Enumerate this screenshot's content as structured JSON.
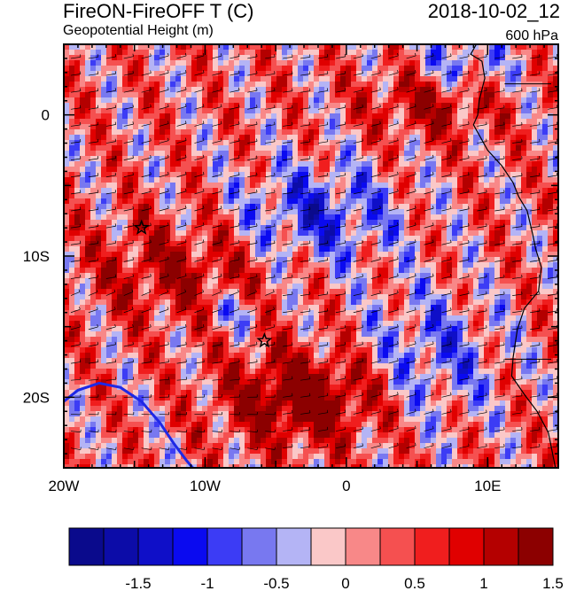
{
  "header": {
    "title_left": "FireON-FireOFF T (C)",
    "title_right": "2018-10-02_12",
    "subtitle_left": "Geopotential Height (m)",
    "subtitle_right": "600 hPa"
  },
  "chart_data": {
    "type": "heatmap",
    "title": "FireON-FireOFF T (C)",
    "subtitle": "Geopotential Height (m)",
    "level": "600 hPa",
    "datetime": "2018-10-02_12",
    "xlim": [
      -20,
      15
    ],
    "ylim": [
      -25,
      5
    ],
    "x_ticks": [
      {
        "value": -20,
        "label": "20W"
      },
      {
        "value": -10,
        "label": "10W"
      },
      {
        "value": 0,
        "label": "0"
      },
      {
        "value": 10,
        "label": "10E"
      }
    ],
    "y_ticks": [
      {
        "value": 0,
        "label": "0"
      },
      {
        "value": -10,
        "label": "10S"
      },
      {
        "value": -20,
        "label": "20S"
      }
    ],
    "colorbar": {
      "levels": [
        -1.75,
        -1.5,
        -1.25,
        -1,
        -0.75,
        -0.5,
        -0.25,
        0,
        0.25,
        0.5,
        0.75,
        1,
        1.25,
        1.5,
        1.75
      ],
      "labels": [
        {
          "value": -1.5,
          "label": "-1.5"
        },
        {
          "value": -1,
          "label": "-1"
        },
        {
          "value": -0.5,
          "label": "-0.5"
        },
        {
          "value": 0,
          "label": "0"
        },
        {
          "value": 0.5,
          "label": "0.5"
        },
        {
          "value": 1,
          "label": "1"
        },
        {
          "value": 1.5,
          "label": "1.5"
        }
      ],
      "colors": [
        "#0a0a8c",
        "#0c0ca8",
        "#0f0fc8",
        "#0a0af0",
        "#3c3cf5",
        "#7878f0",
        "#b4b4f5",
        "#fac8c8",
        "#f88888",
        "#f55050",
        "#f01e1e",
        "#e00000",
        "#b40000",
        "#8c0000"
      ]
    },
    "markers": [
      {
        "type": "star",
        "lon": -14.5,
        "lat": -8.0
      },
      {
        "type": "star",
        "lon": -5.8,
        "lat": -16.0
      }
    ],
    "contour": {
      "color": "#1e28e6"
    },
    "wind_barbs": true,
    "coastline_color": "#000000"
  }
}
